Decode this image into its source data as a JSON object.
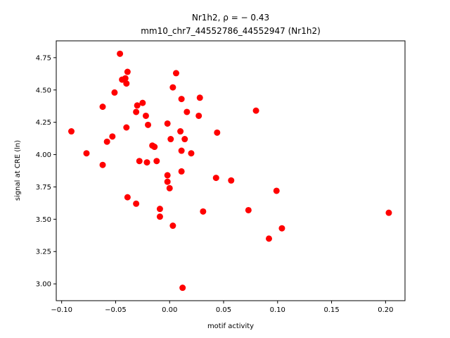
{
  "chart_data": {
    "type": "scatter",
    "title_line1": "Nr1h2, ρ = − 0.43",
    "title_line2": "mm10_chr7_44552786_44552947 (Nr1h2)",
    "xlabel": "motif activity",
    "ylabel": "signal at CRE (ln)",
    "xlim": [
      -0.105,
      0.218
    ],
    "ylim": [
      2.87,
      4.88
    ],
    "xticks": [
      -0.1,
      -0.05,
      0.0,
      0.05,
      0.1,
      0.15,
      0.2
    ],
    "xtick_labels": [
      "−0.10",
      "−0.05",
      "0.00",
      "0.05",
      "0.10",
      "0.15",
      "0.20"
    ],
    "yticks": [
      3.0,
      3.25,
      3.5,
      3.75,
      4.0,
      4.25,
      4.5,
      4.75
    ],
    "ytick_labels": [
      "3.00",
      "3.25",
      "3.50",
      "3.75",
      "4.00",
      "4.25",
      "4.50",
      "4.75"
    ],
    "grid": false,
    "marker_color": "#ff0000",
    "points": [
      {
        "x": -0.091,
        "y": 4.18
      },
      {
        "x": -0.077,
        "y": 4.01
      },
      {
        "x": -0.062,
        "y": 4.37
      },
      {
        "x": -0.062,
        "y": 3.92
      },
      {
        "x": -0.058,
        "y": 4.1
      },
      {
        "x": -0.053,
        "y": 4.14
      },
      {
        "x": -0.051,
        "y": 4.48
      },
      {
        "x": -0.046,
        "y": 4.78
      },
      {
        "x": -0.044,
        "y": 4.58
      },
      {
        "x": -0.041,
        "y": 4.59
      },
      {
        "x": -0.04,
        "y": 4.55
      },
      {
        "x": -0.04,
        "y": 4.21
      },
      {
        "x": -0.039,
        "y": 4.64
      },
      {
        "x": -0.039,
        "y": 3.67
      },
      {
        "x": -0.031,
        "y": 4.33
      },
      {
        "x": -0.03,
        "y": 4.38
      },
      {
        "x": -0.031,
        "y": 3.62
      },
      {
        "x": -0.028,
        "y": 3.95
      },
      {
        "x": -0.025,
        "y": 4.4
      },
      {
        "x": -0.022,
        "y": 4.3
      },
      {
        "x": -0.021,
        "y": 3.94
      },
      {
        "x": -0.02,
        "y": 4.23
      },
      {
        "x": -0.016,
        "y": 4.07
      },
      {
        "x": -0.014,
        "y": 4.06
      },
      {
        "x": -0.012,
        "y": 3.95
      },
      {
        "x": -0.009,
        "y": 3.58
      },
      {
        "x": -0.009,
        "y": 3.52
      },
      {
        "x": -0.002,
        "y": 4.24
      },
      {
        "x": -0.002,
        "y": 3.84
      },
      {
        "x": -0.002,
        "y": 3.79
      },
      {
        "x": 0.0,
        "y": 3.74
      },
      {
        "x": 0.001,
        "y": 4.12
      },
      {
        "x": 0.003,
        "y": 4.52
      },
      {
        "x": 0.003,
        "y": 3.45
      },
      {
        "x": 0.006,
        "y": 4.63
      },
      {
        "x": 0.01,
        "y": 4.18
      },
      {
        "x": 0.011,
        "y": 4.43
      },
      {
        "x": 0.011,
        "y": 4.03
      },
      {
        "x": 0.011,
        "y": 3.87
      },
      {
        "x": 0.012,
        "y": 2.97
      },
      {
        "x": 0.014,
        "y": 4.12
      },
      {
        "x": 0.016,
        "y": 4.33
      },
      {
        "x": 0.02,
        "y": 4.01
      },
      {
        "x": 0.027,
        "y": 4.3
      },
      {
        "x": 0.028,
        "y": 4.44
      },
      {
        "x": 0.031,
        "y": 3.56
      },
      {
        "x": 0.043,
        "y": 3.82
      },
      {
        "x": 0.044,
        "y": 4.17
      },
      {
        "x": 0.057,
        "y": 3.8
      },
      {
        "x": 0.073,
        "y": 3.57
      },
      {
        "x": 0.08,
        "y": 4.34
      },
      {
        "x": 0.092,
        "y": 3.35
      },
      {
        "x": 0.099,
        "y": 3.72
      },
      {
        "x": 0.104,
        "y": 3.43
      },
      {
        "x": 0.203,
        "y": 3.55
      }
    ]
  }
}
